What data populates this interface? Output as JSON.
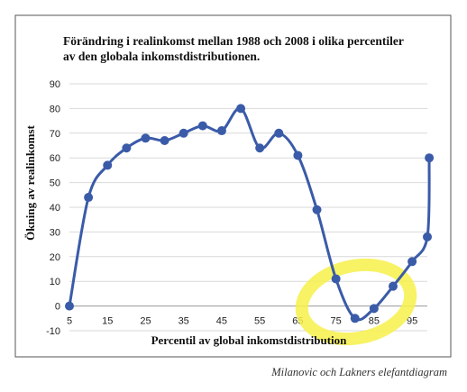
{
  "chart_data": {
    "type": "line",
    "title": "Förändring i realinkomst mellan 1988 och 2008 i olika percentiler av den globala inkomstdistributionen.",
    "title_lines": [
      "Förändring i realinkomst mellan 1988 och 2008 i olika percentiler",
      "av den globala inkomstdistributionen."
    ],
    "xlabel": "Percentil av global inkomstdistribution",
    "ylabel": "Ökning av realinkomst",
    "xlim": [
      5,
      99
    ],
    "ylim": [
      -10,
      90
    ],
    "x_ticks": [
      5,
      15,
      25,
      35,
      45,
      55,
      65,
      75,
      85,
      95
    ],
    "y_ticks": [
      -10,
      0,
      10,
      20,
      30,
      40,
      50,
      60,
      70,
      80,
      90
    ],
    "grid": "horizontal",
    "legend": "none",
    "series": [
      {
        "x": [
          5,
          10,
          15,
          20,
          25,
          30,
          35,
          40,
          45,
          50,
          55,
          60,
          65,
          70,
          75,
          80,
          85,
          90,
          95,
          99,
          99.5
        ],
        "values": [
          0,
          44,
          57,
          64,
          68,
          67,
          70,
          73,
          71,
          80,
          64,
          70,
          61,
          39,
          11,
          -5,
          -1,
          8,
          18,
          28,
          60
        ]
      }
    ],
    "colors": {
      "line": "#3a5ba8",
      "grid": "#d9d9d9",
      "highlight": "#f7f04a"
    },
    "highlight": {
      "shape": "hand-drawn ellipse",
      "around": "percentiles 75-90"
    }
  },
  "caption": "Milanovic och Lakners elefantdiagram"
}
